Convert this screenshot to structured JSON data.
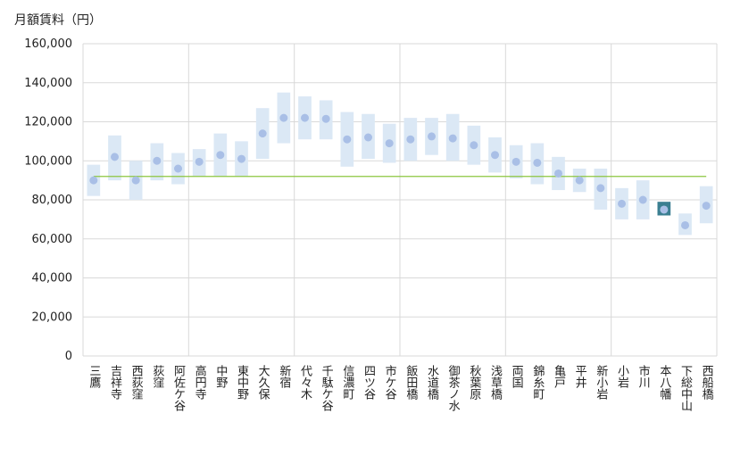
{
  "chart_data": {
    "type": "range-dot",
    "title": "",
    "ylabel": "月額賃料（円）",
    "xlabel": "",
    "ylim": [
      0,
      160000
    ],
    "yticks": [
      0,
      20000,
      40000,
      60000,
      80000,
      100000,
      120000,
      140000,
      160000
    ],
    "ytick_labels": [
      "0",
      "20,000",
      "40,000",
      "60,000",
      "80,000",
      "100,000",
      "120,000",
      "140,000",
      "160,000"
    ],
    "grid": true,
    "categories": [
      "三鷹",
      "吉祥寺",
      "西荻窪",
      "荻窪",
      "阿佐ケ谷",
      "高円寺",
      "中野",
      "東中野",
      "大久保",
      "新宿",
      "代々木",
      "千駄ケ谷",
      "信濃町",
      "四ツ谷",
      "市ケ谷",
      "飯田橋",
      "水道橋",
      "御茶ノ水",
      "秋葉原",
      "浅草橋",
      "両国",
      "錦糸町",
      "亀戸",
      "平井",
      "新小岩",
      "小岩",
      "市川",
      "本八幡",
      "下総中山",
      "西船橋"
    ],
    "group_dividers_after": [
      "阿佐ケ谷",
      "新宿",
      "市ケ谷",
      "浅草橋",
      "新小岩"
    ],
    "series": [
      {
        "name": "low",
        "values": [
          82000,
          90000,
          80000,
          90000,
          88000,
          92000,
          92000,
          92000,
          101000,
          109000,
          111000,
          111000,
          97000,
          101000,
          99000,
          100000,
          103000,
          100000,
          98000,
          94000,
          91000,
          88000,
          85000,
          84000,
          75000,
          70000,
          70000,
          72000,
          62000,
          68000
        ]
      },
      {
        "name": "high",
        "values": [
          98000,
          113000,
          100000,
          109000,
          104000,
          106000,
          114000,
          110000,
          127000,
          135000,
          133000,
          131000,
          125000,
          124000,
          119000,
          122000,
          122000,
          124000,
          118000,
          112000,
          108000,
          109000,
          102000,
          96000,
          96000,
          86000,
          90000,
          79000,
          73000,
          87000
        ]
      },
      {
        "name": "mean",
        "values": [
          90000,
          102000,
          90000,
          100000,
          96000,
          99500,
          103000,
          101000,
          114000,
          122000,
          122000,
          121500,
          111000,
          112000,
          109000,
          111000,
          112500,
          111500,
          108000,
          103000,
          99500,
          99000,
          93500,
          90000,
          86000,
          78000,
          80000,
          75000,
          67000,
          77000
        ]
      }
    ],
    "reference_line": {
      "value": 92000,
      "color": "#8cc63f"
    },
    "highlight": {
      "category": "本八幡",
      "color": "#3b7f91"
    },
    "colors": {
      "range": "#dbe8f5",
      "dot": "#a9bfe6",
      "grid": "#d9d9d9",
      "highlight_dot": "#a9bfe6"
    }
  }
}
